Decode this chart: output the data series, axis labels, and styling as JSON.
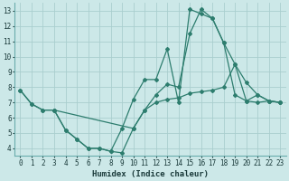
{
  "xlabel": "Humidex (Indice chaleur)",
  "bg_color": "#cce8e8",
  "line_color": "#2d7d6e",
  "grid_color": "#aacece",
  "xlim": [
    -0.5,
    23.5
  ],
  "ylim": [
    3.5,
    13.5
  ],
  "xticks": [
    0,
    1,
    2,
    3,
    4,
    5,
    6,
    7,
    8,
    9,
    10,
    11,
    12,
    13,
    14,
    15,
    16,
    17,
    18,
    19,
    20,
    21,
    22,
    23
  ],
  "yticks": [
    4,
    5,
    6,
    7,
    8,
    9,
    10,
    11,
    12,
    13
  ],
  "line1_x": [
    0,
    1,
    2,
    3,
    4,
    5,
    6,
    7,
    8,
    9,
    10,
    11,
    12,
    13,
    14,
    15,
    16,
    17,
    18,
    19,
    20,
    21,
    22,
    23
  ],
  "line1_y": [
    7.8,
    6.9,
    6.5,
    6.5,
    5.2,
    4.6,
    4.0,
    4.0,
    3.8,
    3.7,
    5.3,
    6.5,
    7.0,
    7.2,
    7.3,
    7.6,
    7.7,
    7.8,
    8.0,
    9.5,
    8.3,
    7.5,
    7.1,
    7.0
  ],
  "line2_x": [
    0,
    1,
    2,
    3,
    4,
    5,
    6,
    7,
    8,
    9,
    10,
    11,
    12,
    13,
    14,
    15,
    16,
    17,
    18,
    19,
    20,
    21,
    22,
    23
  ],
  "line2_y": [
    7.8,
    6.9,
    6.5,
    6.5,
    5.2,
    4.6,
    4.0,
    4.0,
    3.8,
    5.3,
    7.2,
    8.5,
    8.5,
    10.5,
    7.0,
    13.1,
    12.8,
    12.5,
    10.9,
    7.5,
    7.1,
    7.5,
    7.1,
    7.0
  ],
  "line3_x": [
    3,
    10,
    11,
    12,
    13,
    14,
    15,
    16,
    17,
    18,
    19,
    20,
    21,
    22,
    23
  ],
  "line3_y": [
    6.5,
    5.3,
    6.5,
    7.5,
    8.2,
    8.0,
    11.5,
    13.1,
    12.5,
    10.9,
    9.5,
    7.1,
    7.0,
    7.1,
    7.0
  ]
}
